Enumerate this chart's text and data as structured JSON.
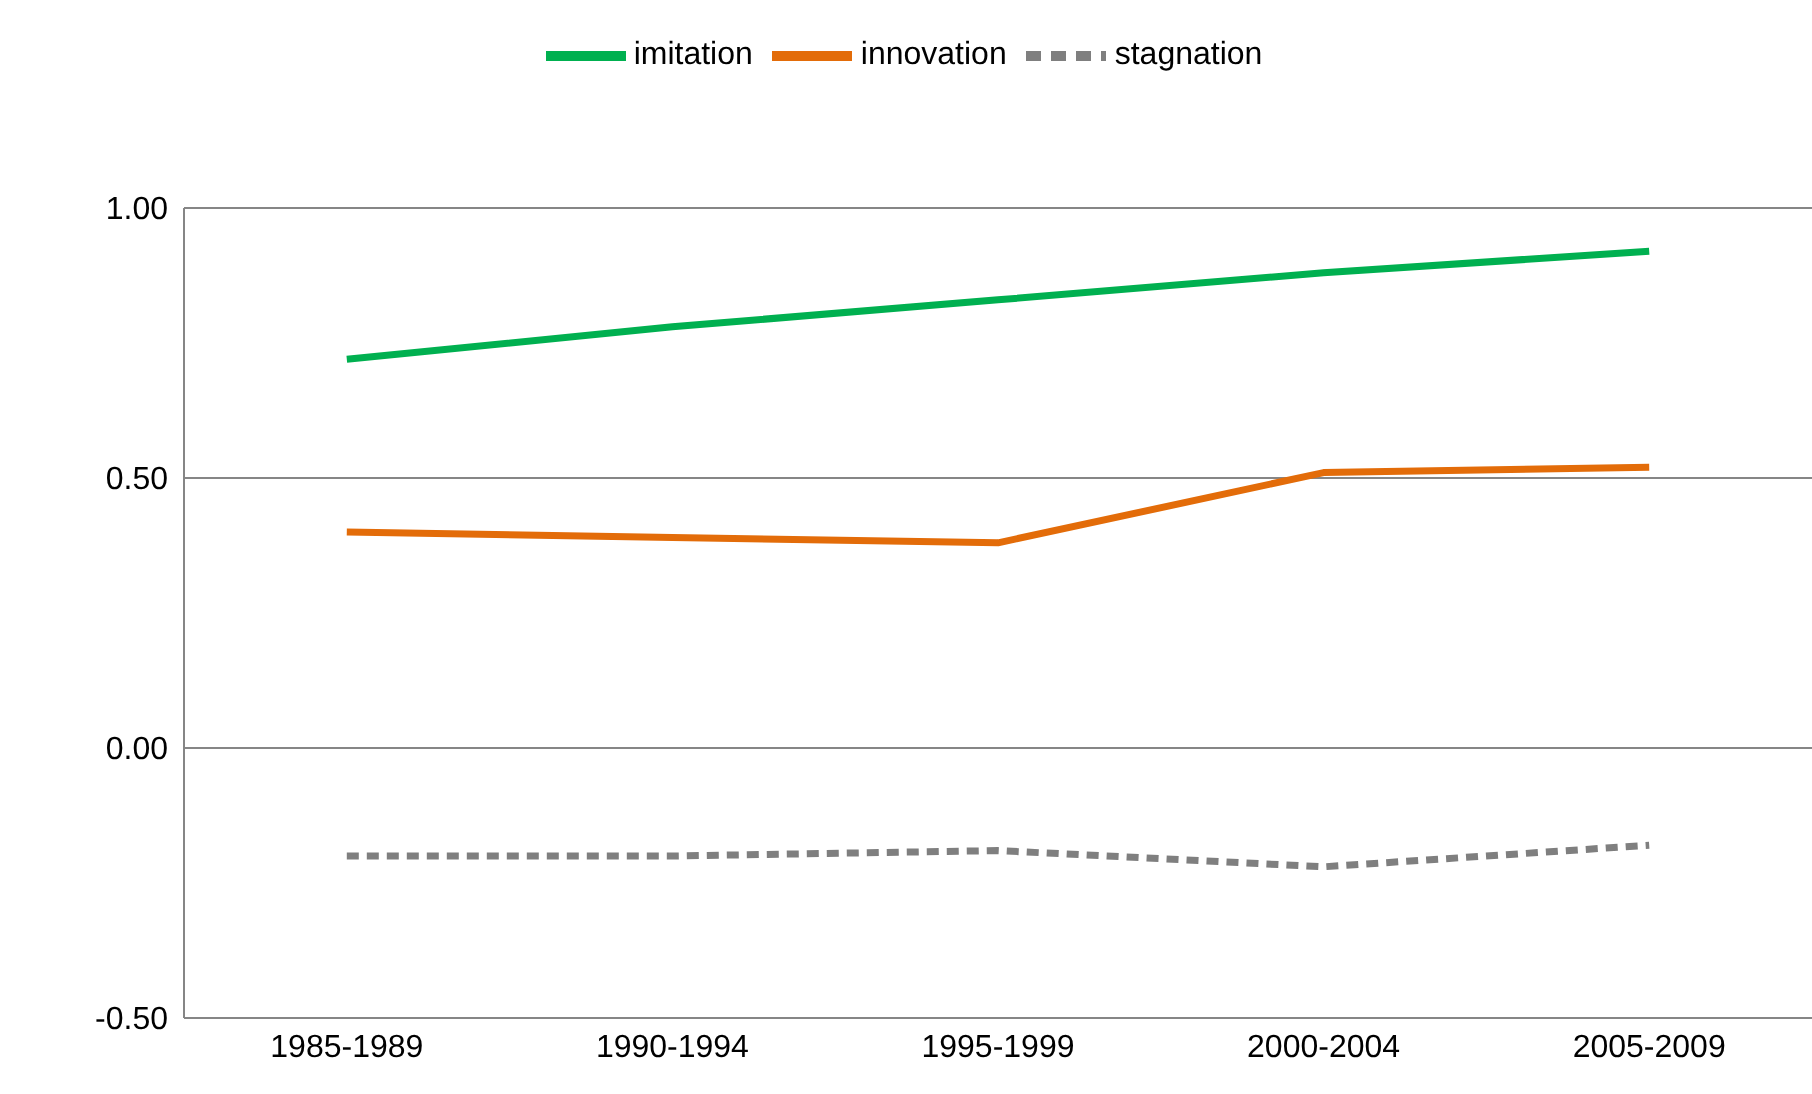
{
  "chart_data": {
    "type": "line",
    "categories": [
      "1985-1989",
      "1990-1994",
      "1995-1999",
      "2000-2004",
      "2005-2009"
    ],
    "series": [
      {
        "name": "stagnation",
        "color": "#7f7f7f",
        "line_style": "dashed",
        "values": [
          -0.2,
          -0.2,
          -0.19,
          -0.22,
          -0.18
        ]
      },
      {
        "name": "innovation",
        "color": "#e36c09",
        "values": [
          0.4,
          0.39,
          0.38,
          0.51,
          0.52
        ]
      },
      {
        "name": "imitation",
        "color": "#00b050",
        "values": [
          0.72,
          0.78,
          0.83,
          0.88,
          0.92
        ]
      }
    ],
    "ylim": [
      -0.5,
      1
    ],
    "yticks": [
      {
        "value": -0.5,
        "label": "-0.50"
      },
      {
        "value": 0,
        "label": "0.00"
      },
      {
        "value": 0.5,
        "label": "0.50"
      },
      {
        "value": 1,
        "label": "1.00"
      }
    ],
    "grid": "y",
    "legend": "top",
    "marker": "none",
    "line_style": "solid"
  }
}
